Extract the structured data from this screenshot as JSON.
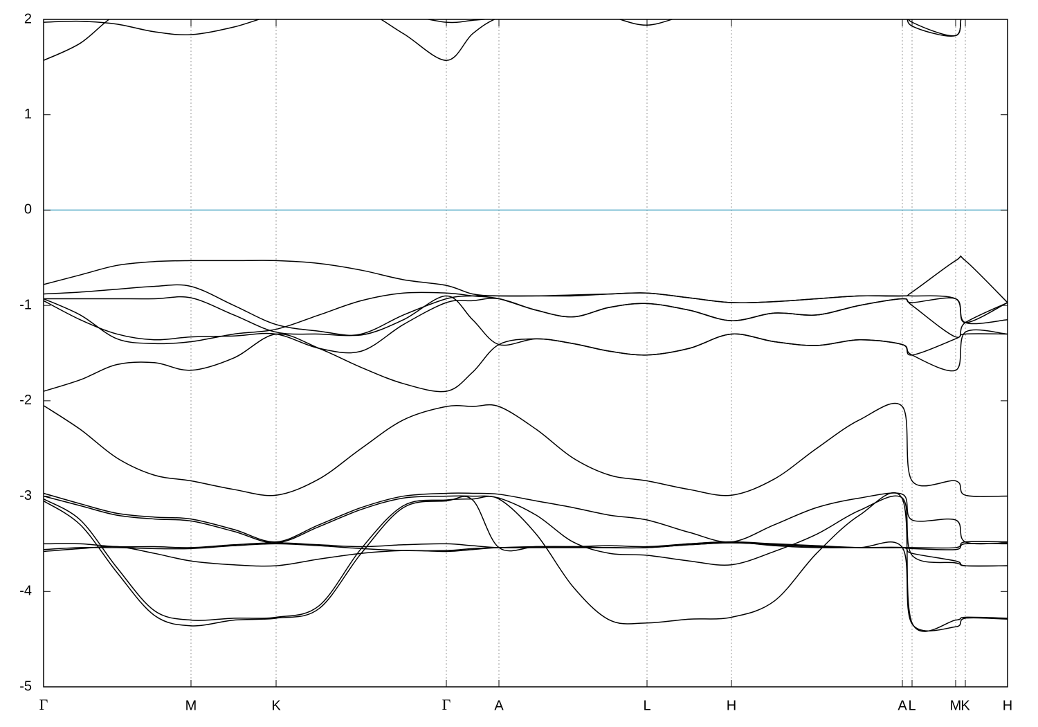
{
  "chart_data": {
    "type": "line",
    "x": [
      0,
      0.053,
      0.106,
      0.16,
      0.213,
      0.275,
      0.336,
      0.398,
      0.459,
      0.52,
      0.582,
      0.62,
      0.658,
      0.712,
      0.765,
      0.818,
      0.872,
      0.933,
      0.994,
      1.056,
      1.117,
      1.179,
      1.241,
      1.255,
      1.318,
      1.332,
      1.393
    ],
    "xlim": [
      0,
      1.393
    ],
    "xticks": [
      {
        "value": 0,
        "label": "Γ"
      },
      {
        "value": 0.213,
        "label": "M"
      },
      {
        "value": 0.336,
        "label": "K"
      },
      {
        "value": 0.582,
        "label": "Γ"
      },
      {
        "value": 0.658,
        "label": "A"
      },
      {
        "value": 0.872,
        "label": "L"
      },
      {
        "value": 0.994,
        "label": "H"
      },
      {
        "value": 1.241,
        "label": "A"
      },
      {
        "value": 1.255,
        "label": "L"
      },
      {
        "value": 1.318,
        "label": "M"
      },
      {
        "value": 1.332,
        "label": "K"
      },
      {
        "value": 1.393,
        "label": "H"
      }
    ],
    "ylim": [
      -5,
      2
    ],
    "yticks": [
      -5,
      -4,
      -3,
      -2,
      -1,
      0,
      1,
      2
    ],
    "grid": "x",
    "hline": 0,
    "hline_color": "#5aaec8",
    "series": [
      {
        "color": "#000000",
        "values": [
          1.57,
          1.75,
          2.05,
          2.1,
          2.1,
          2.1,
          2.1,
          2.1,
          2.1,
          1.85,
          1.57,
          1.85,
          2.02,
          2.1,
          2.1,
          2.1,
          2.1,
          2.1,
          2.1,
          2.1,
          2.1,
          2.1,
          2.1,
          1.93,
          1.83,
          2.1,
          2.1
        ]
      },
      {
        "color": "#000000",
        "values": [
          1.97,
          1.98,
          1.95,
          1.87,
          1.84,
          1.92,
          2.05,
          2.1,
          2.1,
          2.05,
          1.97,
          1.99,
          2.02,
          2.1,
          2.1,
          2.03,
          1.94,
          2.05,
          2.1,
          2.1,
          2.1,
          2.1,
          2.1,
          1.97,
          1.83,
          2.1,
          2.1
        ]
      },
      {
        "color": "#000000",
        "values": [
          -0.78,
          -0.68,
          -0.58,
          -0.54,
          -0.53,
          -0.53,
          -0.53,
          -0.56,
          -0.63,
          -0.73,
          -0.79,
          -0.88,
          -0.9,
          -0.9,
          -0.89,
          -0.88,
          -0.87,
          -0.92,
          -0.97,
          -0.96,
          -0.93,
          -0.9,
          -0.9,
          -0.86,
          -0.53,
          -0.53,
          -0.97
        ]
      },
      {
        "color": "#000000",
        "values": [
          -0.88,
          -0.86,
          -0.83,
          -0.8,
          -0.8,
          -1.0,
          -1.2,
          -1.27,
          -1.31,
          -1.15,
          -0.9,
          -1.15,
          -1.41,
          -1.35,
          -1.4,
          -1.48,
          -1.52,
          -1.45,
          -1.3,
          -1.38,
          -1.42,
          -1.36,
          -1.41,
          -1.52,
          -1.35,
          -1.3,
          -1.3
        ]
      },
      {
        "color": "#000000",
        "values": [
          -1.9,
          -1.78,
          -1.62,
          -1.6,
          -1.68,
          -1.55,
          -1.3,
          -1.45,
          -1.65,
          -1.82,
          -1.9,
          -1.7,
          -1.41,
          -1.35,
          -1.4,
          -1.48,
          -1.52,
          -1.45,
          -1.3,
          -1.38,
          -1.42,
          -1.36,
          -1.41,
          -1.52,
          -1.68,
          -1.28,
          -1.3
        ]
      },
      {
        "color": "#000000",
        "values": [
          -0.93,
          -1.1,
          -1.35,
          -1.4,
          -1.38,
          -1.3,
          -1.25,
          -1.1,
          -0.95,
          -0.87,
          -0.87,
          -0.9,
          -0.93,
          -1.05,
          -1.12,
          -1.02,
          -0.98,
          -1.05,
          -1.16,
          -1.08,
          -1.1,
          -1.0,
          -0.93,
          -0.97,
          -0.93,
          -1.18,
          -1.15
        ]
      },
      {
        "color": "#000000",
        "values": [
          -0.95,
          -1.15,
          -1.3,
          -1.36,
          -1.33,
          -1.32,
          -1.3,
          -1.45,
          -1.48,
          -1.2,
          -0.97,
          -0.95,
          -0.93,
          -1.05,
          -1.12,
          -1.02,
          -0.98,
          -1.05,
          -1.16,
          -1.08,
          -1.1,
          -1.0,
          -0.93,
          -1.0,
          -1.33,
          -1.18,
          -0.97
        ]
      },
      {
        "color": "#000000",
        "values": [
          -0.93,
          -0.93,
          -0.93,
          -0.93,
          -0.92,
          -1.1,
          -1.28,
          -1.3,
          -1.3,
          -1.1,
          -0.93,
          -0.9,
          -0.9,
          -0.9,
          -0.9,
          -0.88,
          -0.87,
          -0.92,
          -0.97,
          -0.96,
          -0.93,
          -0.9,
          -0.9,
          -0.9,
          -0.93,
          -1.18,
          -0.97
        ]
      },
      {
        "color": "#000000",
        "values": [
          -2.05,
          -2.3,
          -2.6,
          -2.78,
          -2.84,
          -2.93,
          -2.99,
          -2.82,
          -2.5,
          -2.2,
          -2.06,
          -2.06,
          -2.06,
          -2.3,
          -2.6,
          -2.78,
          -2.84,
          -2.93,
          -2.99,
          -2.82,
          -2.5,
          -2.2,
          -2.06,
          -2.84,
          -2.84,
          -2.99,
          -3.0
        ]
      },
      {
        "color": "#000000",
        "values": [
          -2.97,
          -3.08,
          -3.18,
          -3.22,
          -3.24,
          -3.35,
          -3.48,
          -3.3,
          -3.12,
          -3.0,
          -2.97,
          -2.97,
          -2.98,
          -3.05,
          -3.12,
          -3.2,
          -3.25,
          -3.38,
          -3.48,
          -3.3,
          -3.12,
          -3.02,
          -2.98,
          -3.25,
          -3.25,
          -3.48,
          -3.49
        ]
      },
      {
        "color": "#000000",
        "values": [
          -3.0,
          -3.1,
          -3.2,
          -3.24,
          -3.26,
          -3.37,
          -3.49,
          -3.32,
          -3.14,
          -3.02,
          -3.0,
          -3.0,
          -3.02,
          -3.2,
          -3.48,
          -3.6,
          -3.62,
          -3.68,
          -3.72,
          -3.58,
          -3.4,
          -3.15,
          -3.02,
          -3.62,
          -3.7,
          -3.73,
          -3.73
        ]
      },
      {
        "color": "#000000",
        "values": [
          -3.03,
          -3.25,
          -3.75,
          -4.2,
          -4.3,
          -4.28,
          -4.27,
          -4.15,
          -3.55,
          -3.1,
          -3.04,
          -3.03,
          -3.03,
          -3.4,
          -3.95,
          -4.3,
          -4.33,
          -4.29,
          -4.27,
          -4.1,
          -3.6,
          -3.2,
          -3.03,
          -4.33,
          -4.3,
          -4.27,
          -4.28
        ]
      },
      {
        "color": "#000000",
        "values": [
          -3.05,
          -3.3,
          -3.8,
          -4.25,
          -4.36,
          -4.3,
          -4.28,
          -4.18,
          -3.6,
          -3.12,
          -3.05,
          -3.04,
          -3.54,
          -3.53,
          -3.53,
          -3.54,
          -3.54,
          -3.5,
          -3.48,
          -3.52,
          -3.54,
          -3.54,
          -3.54,
          -4.34,
          -4.37,
          -4.28,
          -4.29
        ]
      },
      {
        "color": "#000000",
        "values": [
          -3.5,
          -3.5,
          -3.53,
          -3.53,
          -3.54,
          -3.51,
          -3.49,
          -3.51,
          -3.53,
          -3.51,
          -3.5,
          -3.52,
          -3.54,
          -3.54,
          -3.54,
          -3.54,
          -3.54,
          -3.51,
          -3.49,
          -3.51,
          -3.53,
          -3.54,
          -3.54,
          -3.54,
          -3.54,
          -3.48,
          -3.48
        ]
      },
      {
        "color": "#000000",
        "values": [
          -3.58,
          -3.55,
          -3.53,
          -3.6,
          -3.68,
          -3.72,
          -3.73,
          -3.66,
          -3.6,
          -3.57,
          -3.58,
          -3.56,
          -3.54,
          -3.54,
          -3.54,
          -3.54,
          -3.54,
          -3.51,
          -3.49,
          -3.51,
          -3.53,
          -3.54,
          -3.54,
          -3.6,
          -3.68,
          -3.73,
          -3.73
        ]
      },
      {
        "color": "#000000",
        "values": [
          -3.56,
          -3.54,
          -3.54,
          -3.55,
          -3.55,
          -3.52,
          -3.5,
          -3.52,
          -3.55,
          -3.57,
          -3.57,
          -3.55,
          -3.54,
          -3.53,
          -3.53,
          -3.52,
          -3.53,
          -3.5,
          -3.48,
          -3.5,
          -3.52,
          -3.54,
          -3.54,
          -3.55,
          -3.56,
          -3.5,
          -3.5
        ]
      }
    ]
  }
}
